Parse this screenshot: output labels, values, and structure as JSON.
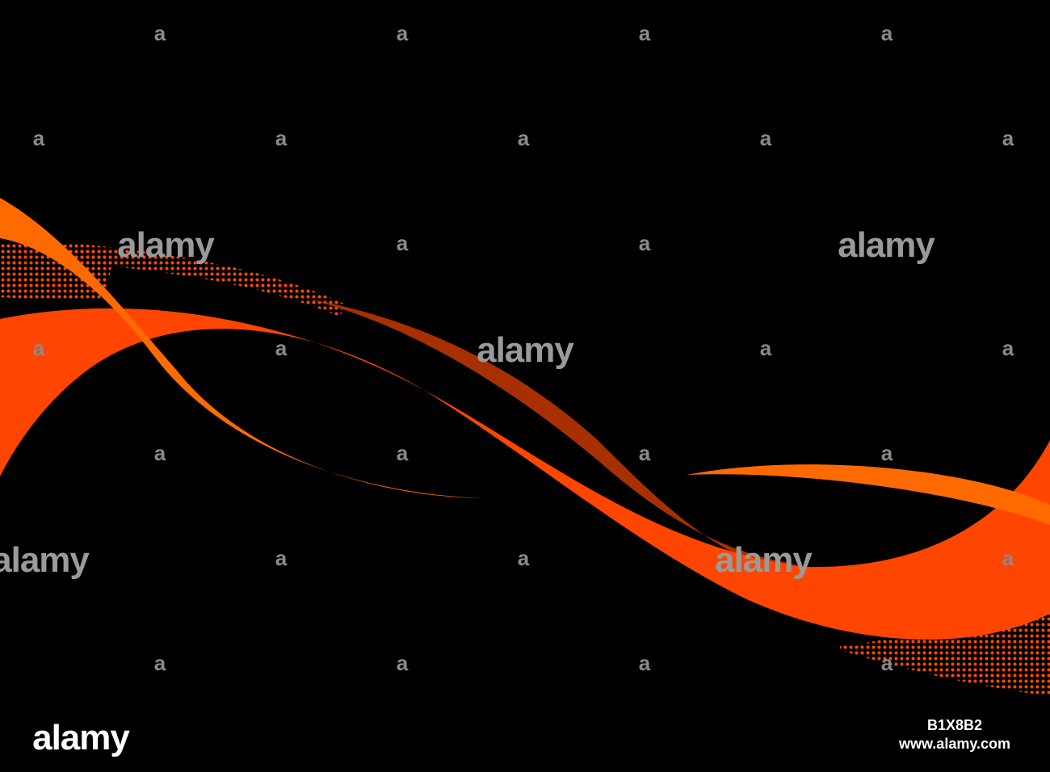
{
  "watermark": {
    "logo": "alamy",
    "mark": "a"
  },
  "image_id": "B1X8B2",
  "url": "www.alamy.com"
}
